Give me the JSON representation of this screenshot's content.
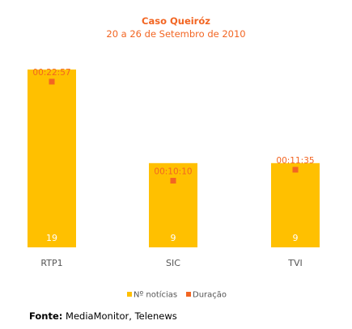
{
  "colors": {
    "bar": "#ffc000",
    "marker": "#f26522",
    "title": "#f26522",
    "axis_text": "#555555"
  },
  "chart_data": {
    "type": "bar",
    "title": "Caso Queiróz",
    "subtitle": "20 a 26 de Setembro de 2010",
    "categories": [
      "RTP1",
      "SIC",
      "TVI"
    ],
    "series": [
      {
        "name": "Nº notícias",
        "type": "bar",
        "values": [
          19,
          9,
          9
        ],
        "labels": [
          "19",
          "9",
          "9"
        ]
      },
      {
        "name": "Duração",
        "type": "marker",
        "values_seconds": [
          1377,
          610,
          695
        ],
        "labels": [
          "00:22:57",
          "00:10:10",
          "00:11:35"
        ]
      }
    ],
    "legend_position": "bottom-center",
    "grid": false
  },
  "source": {
    "label": "Fonte:",
    "text": " MediaMonitor, Telenews"
  }
}
